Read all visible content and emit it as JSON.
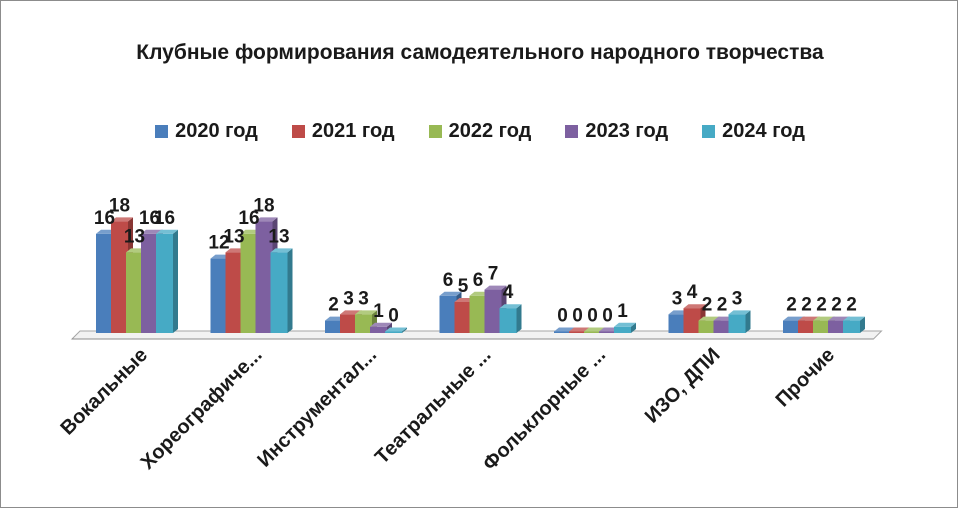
{
  "chart_data": {
    "type": "bar",
    "title": "Клубные формирования самодеятельного народного творчества",
    "categories": [
      "Вокальные",
      "Хореографиче...",
      "Инструментал...",
      "Театральные ...",
      "Фольклорные ...",
      "ИЗО, ДПИ",
      "Прочие"
    ],
    "series": [
      {
        "name": "2020 год",
        "color": "#4a7ebb",
        "values": [
          16,
          12,
          2,
          6,
          0,
          3,
          2
        ]
      },
      {
        "name": "2021 год",
        "color": "#be4b48",
        "values": [
          18,
          13,
          3,
          5,
          0,
          4,
          2
        ]
      },
      {
        "name": "2022 год",
        "color": "#98b954",
        "values": [
          13,
          16,
          3,
          6,
          0,
          2,
          2
        ]
      },
      {
        "name": "2023 год",
        "color": "#7d60a0",
        "values": [
          16,
          18,
          1,
          7,
          0,
          2,
          2
        ]
      },
      {
        "name": "2024 год",
        "color": "#46aac5",
        "values": [
          16,
          13,
          0,
          4,
          1,
          3,
          2
        ]
      }
    ],
    "ylim": [
      0,
      18
    ],
    "legend": "top",
    "grid": false
  }
}
